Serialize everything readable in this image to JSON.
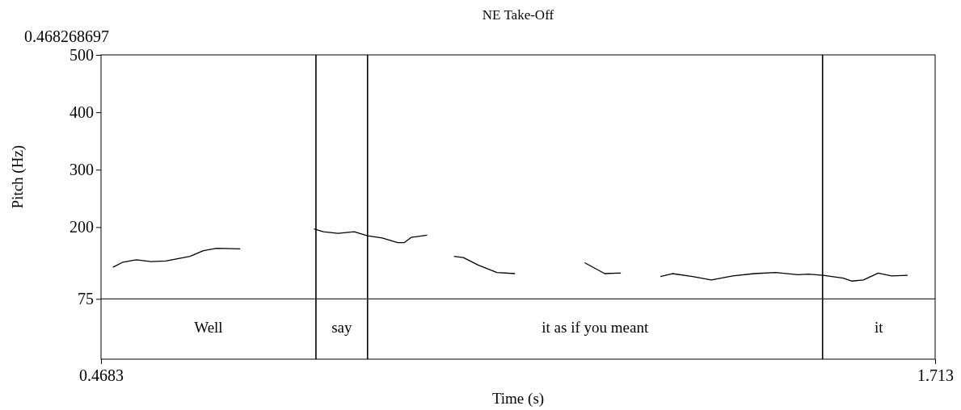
{
  "chart_data": {
    "type": "line",
    "title": "NE Take-Off",
    "xlabel": "Time (s)",
    "ylabel": "Pitch (Hz)",
    "annotations": [
      "0.468268697",
      "Well",
      "say",
      "it as if you meant",
      "it"
    ],
    "xlim": [
      0.4683,
      1.713
    ],
    "xticks": [
      0.4683,
      1.713
    ],
    "ylim": [
      -30,
      500
    ],
    "yticks": [
      75,
      200,
      300,
      400,
      500
    ],
    "grid": false,
    "marker": "none",
    "line_style": "solid",
    "ref_lines": [
      {
        "axis": "y",
        "value": 75
      },
      {
        "axis": "x",
        "value": 0.789
      },
      {
        "axis": "x",
        "value": 0.866
      },
      {
        "axis": "x",
        "value": 1.545
      }
    ],
    "series": [
      {
        "color": "#000000",
        "x": [
          0.486,
          0.501,
          0.521,
          0.543,
          0.565,
          0.601,
          0.621,
          0.641,
          0.676,
          0.73,
          0.786,
          0.8,
          0.822,
          0.846,
          0.866,
          0.888,
          0.911,
          0.921,
          0.931,
          0.955,
          0.97,
          0.995,
          1.009,
          1.031,
          1.059,
          1.086,
          1.14,
          1.19,
          1.22,
          1.244,
          1.27,
          1.303,
          1.321,
          1.351,
          1.379,
          1.411,
          1.443,
          1.475,
          1.508,
          1.524,
          1.546,
          1.576,
          1.589,
          1.606,
          1.628,
          1.648,
          1.672
        ],
        "values": [
          130,
          139,
          143,
          140,
          141,
          149,
          159,
          163,
          162,
          null,
          197,
          192,
          189,
          192,
          185,
          181,
          173,
          173,
          182,
          186,
          null,
          149,
          147,
          134,
          121,
          119,
          null,
          138,
          119,
          120,
          null,
          114,
          119,
          114,
          108,
          115,
          119,
          121,
          117,
          118,
          116,
          111,
          106,
          108,
          120,
          115,
          116
        ]
      }
    ]
  }
}
